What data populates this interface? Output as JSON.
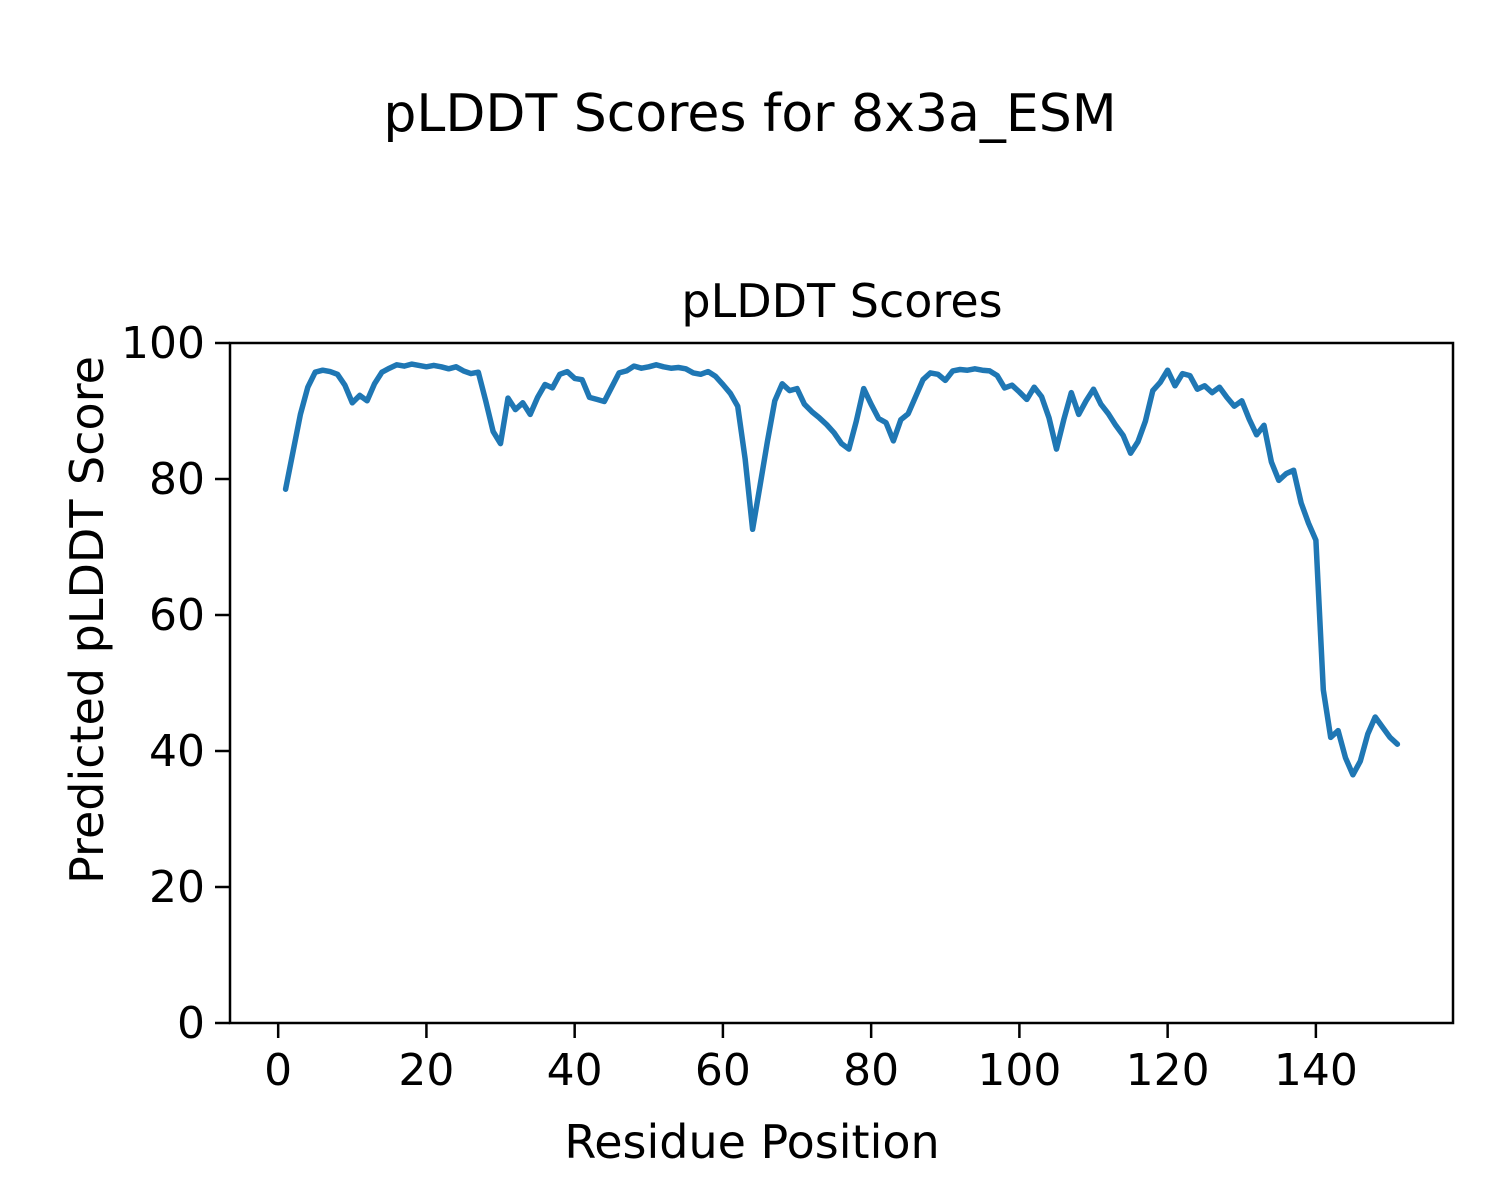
{
  "figure": {
    "suptitle": "pLDDT Scores for 8x3a_ESM",
    "background": "#ffffff"
  },
  "chart_data": {
    "type": "line",
    "title": "pLDDT Scores",
    "xlabel": "Residue Position",
    "ylabel": "Predicted pLDDT Score",
    "line_color": "#1f77b4",
    "line_width": 5.5,
    "grid": false,
    "legend": null,
    "xlim": [
      -6.5,
      158.5
    ],
    "ylim": [
      0,
      100
    ],
    "xticks": [
      0,
      20,
      40,
      60,
      80,
      100,
      120,
      140
    ],
    "yticks": [
      0,
      20,
      40,
      60,
      80,
      100
    ],
    "x_start": 1,
    "x_step": 1,
    "series": [
      {
        "name": "pLDDT",
        "values": [
          78.5,
          84.0,
          89.5,
          93.5,
          95.7,
          96.0,
          95.8,
          95.4,
          93.8,
          91.2,
          92.3,
          91.5,
          94.0,
          95.7,
          96.3,
          96.8,
          96.6,
          96.9,
          96.7,
          96.5,
          96.7,
          96.5,
          96.2,
          96.5,
          95.9,
          95.5,
          95.7,
          91.5,
          87.0,
          85.2,
          91.9,
          90.2,
          91.2,
          89.5,
          92.0,
          93.9,
          93.4,
          95.4,
          95.8,
          94.8,
          94.6,
          92.0,
          91.7,
          91.4,
          93.5,
          95.6,
          95.9,
          96.6,
          96.3,
          96.5,
          96.8,
          96.5,
          96.3,
          96.4,
          96.2,
          95.6,
          95.4,
          95.8,
          95.1,
          93.9,
          92.6,
          90.7,
          83.0,
          72.6,
          79.0,
          85.5,
          91.5,
          94.0,
          93.0,
          93.3,
          91.0,
          89.9,
          89.0,
          88.0,
          86.8,
          85.2,
          84.4,
          88.5,
          93.3,
          91.0,
          88.9,
          88.3,
          85.6,
          88.7,
          89.6,
          92.1,
          94.6,
          95.6,
          95.4,
          94.5,
          95.9,
          96.1,
          96.0,
          96.2,
          96.0,
          95.9,
          95.2,
          93.4,
          93.8,
          92.8,
          91.7,
          93.5,
          92.1,
          89.0,
          84.4,
          88.8,
          92.7,
          89.5,
          91.5,
          93.2,
          91.0,
          89.6,
          87.9,
          86.4,
          83.8,
          85.5,
          88.5,
          93.0,
          94.2,
          96.0,
          93.7,
          95.5,
          95.2,
          93.2,
          93.7,
          92.7,
          93.5,
          92.0,
          90.7,
          91.5,
          88.8,
          86.5,
          87.9,
          82.5,
          79.8,
          80.8,
          81.3,
          76.5,
          73.5,
          71.0,
          49.0,
          42.0,
          43.0,
          39.0,
          36.5,
          38.5,
          42.5,
          45.0,
          43.5,
          42.0,
          41.0
        ]
      }
    ]
  }
}
